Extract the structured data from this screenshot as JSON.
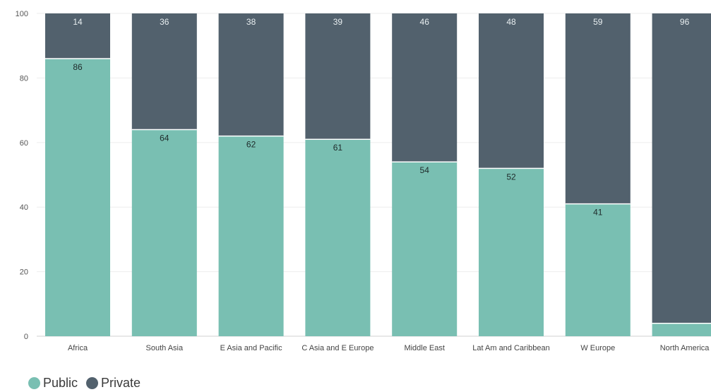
{
  "chart_data": {
    "type": "bar",
    "stacked": true,
    "categories": [
      "Africa",
      "South Asia",
      "E Asia and Pacific",
      "C Asia and E Europe",
      "Middle East",
      "Lat Am and Caribbean",
      "W Europe",
      "North America"
    ],
    "series": [
      {
        "name": "Public",
        "values": [
          86,
          64,
          62,
          61,
          54,
          52,
          41,
          4
        ],
        "color": "#79bfb2"
      },
      {
        "name": "Private",
        "values": [
          14,
          36,
          38,
          39,
          46,
          48,
          59,
          96
        ],
        "color": "#52616d"
      }
    ],
    "ylim": [
      0,
      100
    ],
    "yticks": [
      0,
      20,
      40,
      60,
      80,
      100
    ],
    "grid": true,
    "legend_position": "bottom-left"
  }
}
